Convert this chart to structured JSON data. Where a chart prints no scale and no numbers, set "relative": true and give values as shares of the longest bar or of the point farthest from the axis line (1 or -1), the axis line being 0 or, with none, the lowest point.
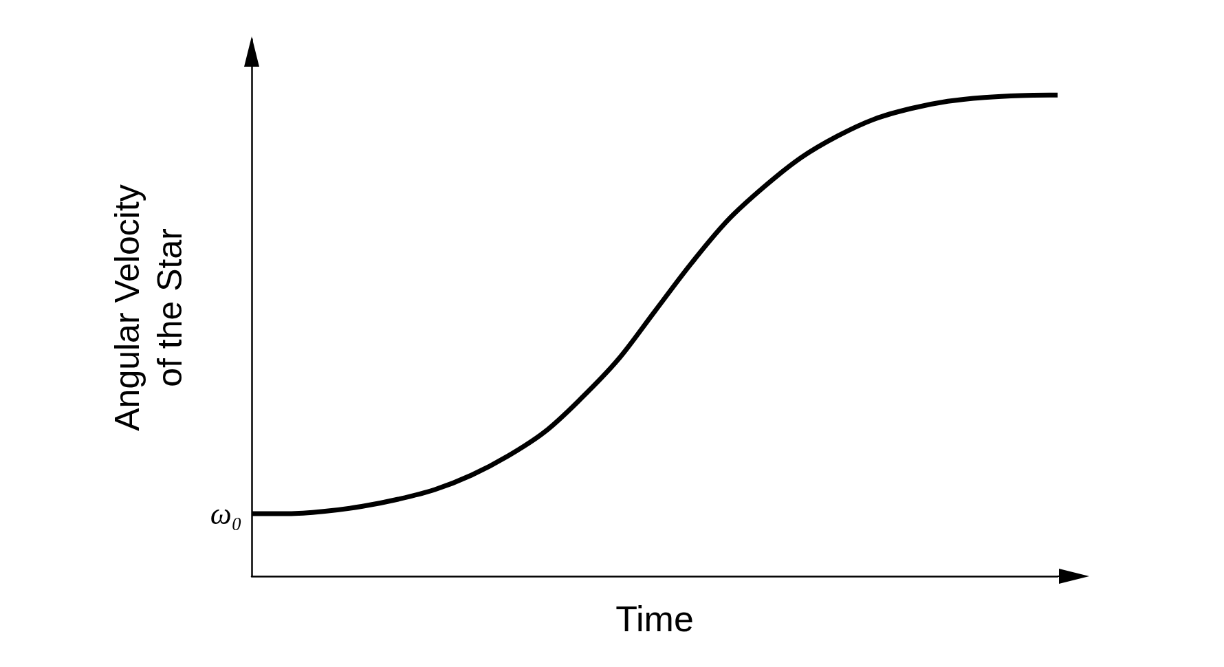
{
  "chart_data": {
    "type": "line",
    "xlabel": "Time",
    "ylabel": "Angular Velocity of the Star",
    "categories": [
      null,
      null,
      null,
      null,
      null,
      null,
      null,
      null,
      null,
      null,
      null,
      null,
      null,
      null,
      null,
      null,
      null,
      null,
      null,
      null,
      null,
      null,
      null
    ],
    "series": [
      {
        "color": "#000000",
        "values": [
          0.13,
          0.13,
          0.135,
          0.145,
          0.16,
          0.18,
          0.21,
          0.25,
          0.3,
          0.37,
          0.45,
          0.55,
          0.65,
          0.74,
          0.81,
          0.87,
          0.915,
          0.95,
          0.972,
          0.987,
          0.995,
          0.999,
          1.0
        ]
      }
    ],
    "relative": true,
    "grid": false,
    "marker": "none",
    "line_style": "solid",
    "annotations": [
      "ω₀"
    ]
  }
}
